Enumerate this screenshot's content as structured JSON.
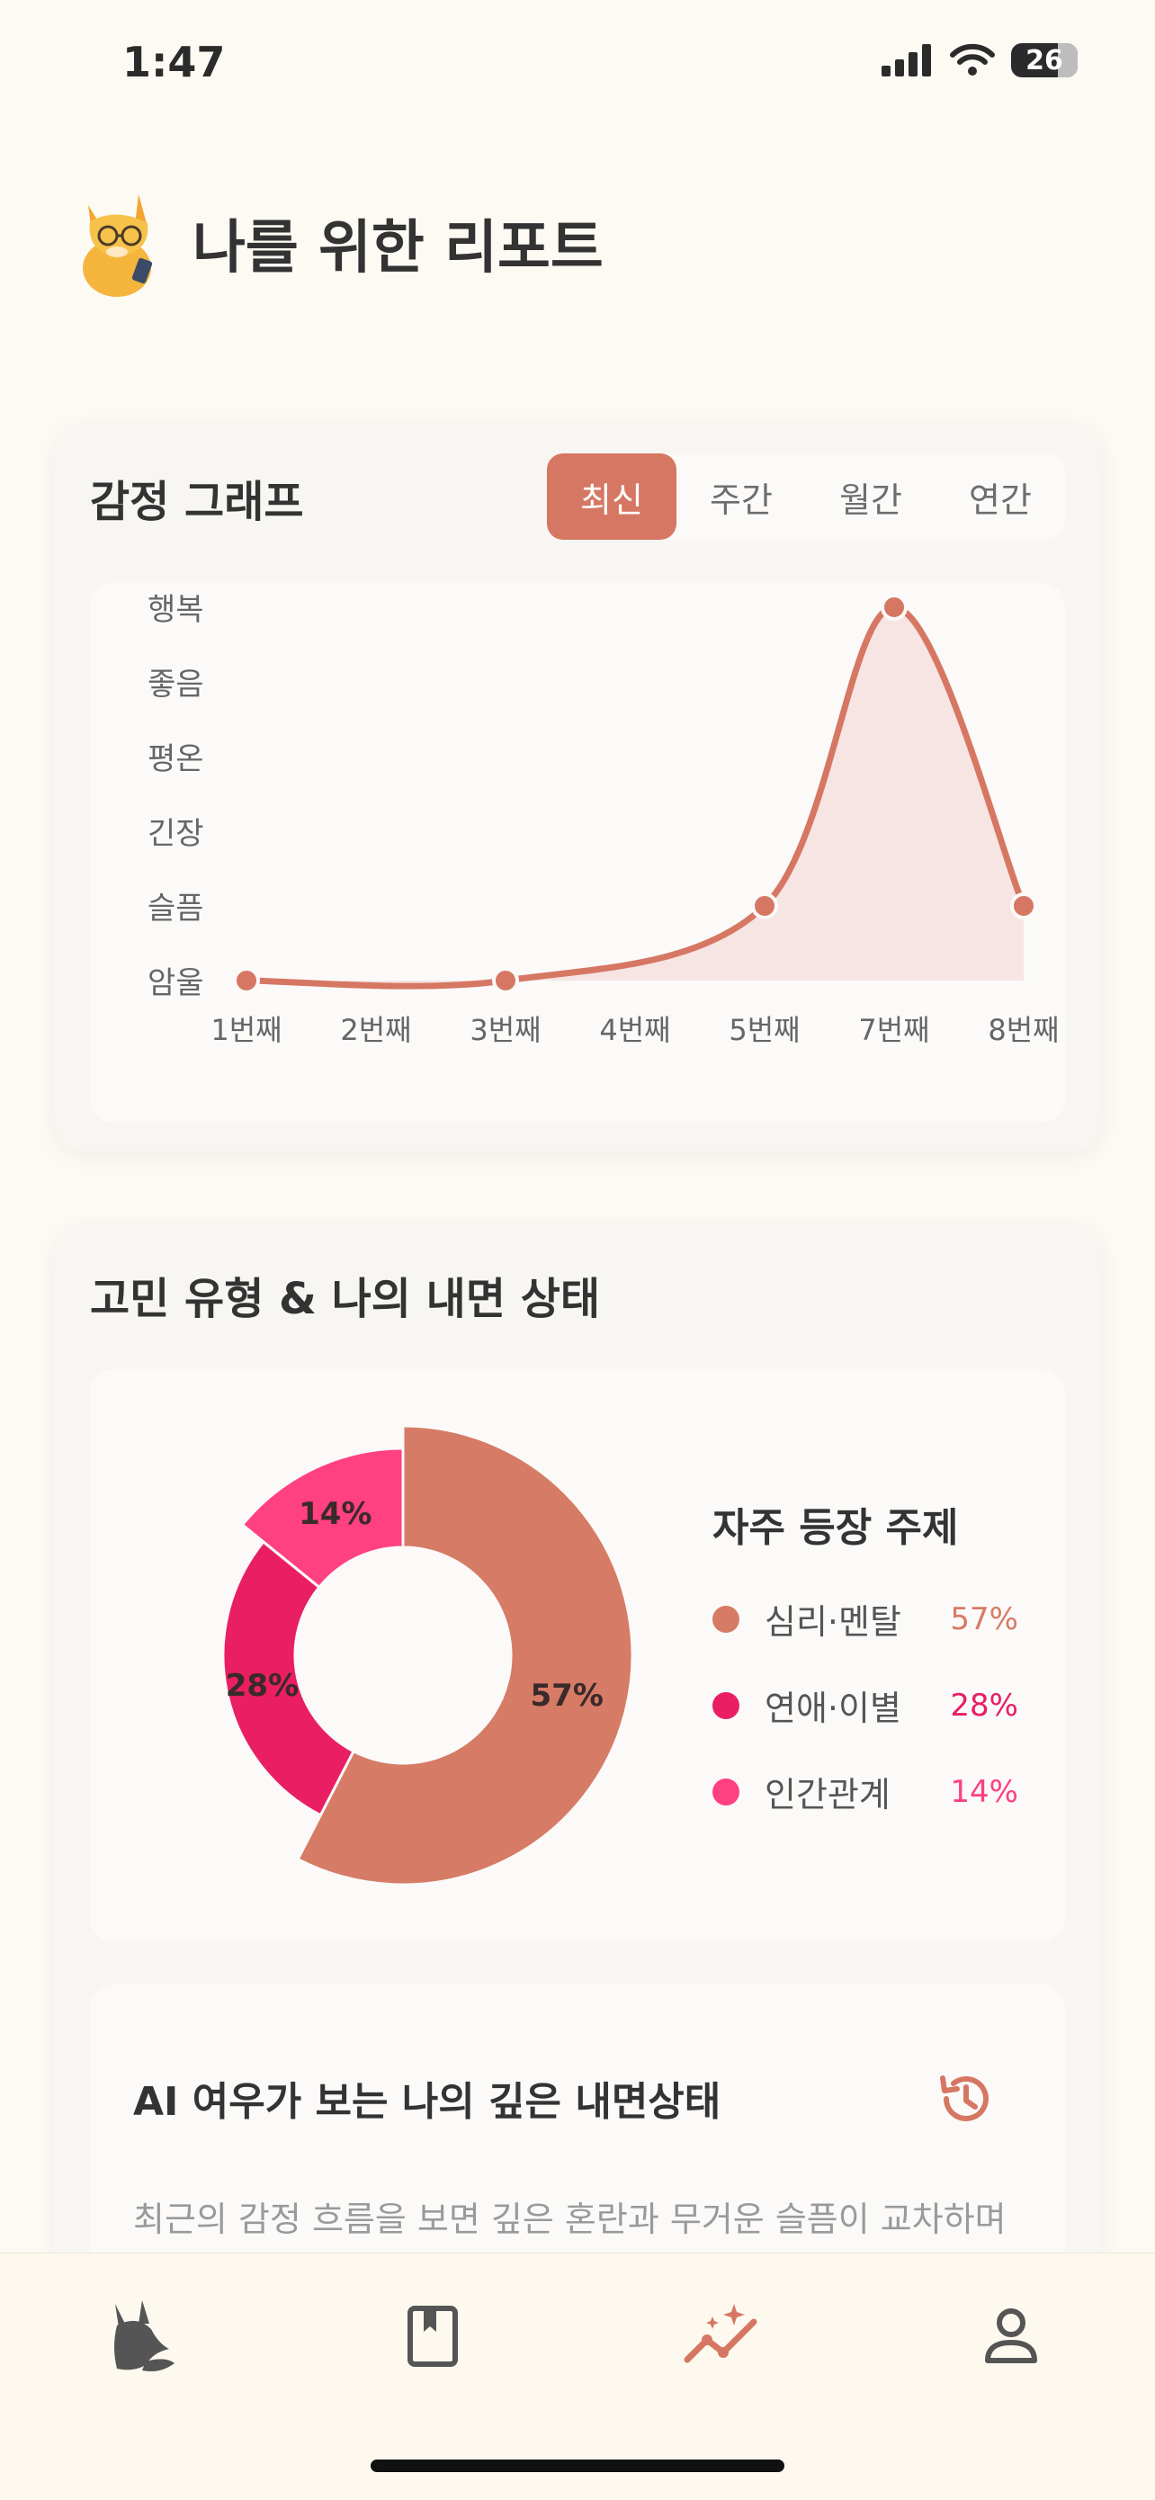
{
  "status_bar": {
    "time": "1:47",
    "battery": "26"
  },
  "header": {
    "title": "나를 위한 리포트",
    "mascot_icon": "fox-mascot-icon"
  },
  "emotion_graph": {
    "title": "감정 그래프",
    "tabs": [
      {
        "label": "최신",
        "active": true
      },
      {
        "label": "주간",
        "active": false
      },
      {
        "label": "월간",
        "active": false
      },
      {
        "label": "연간",
        "active": false
      }
    ]
  },
  "chart_data": [
    {
      "type": "line",
      "y_levels": [
        "암울",
        "슬픔",
        "긴장",
        "평온",
        "좋음",
        "행복"
      ],
      "categories": [
        "1번째",
        "2번째",
        "3번째",
        "4번째",
        "5번째",
        "7번째",
        "8번째"
      ],
      "points": [
        {
          "x": "1번째",
          "y": 0
        },
        {
          "x": "3번째",
          "y": 0
        },
        {
          "x": "5번째",
          "y": 1
        },
        {
          "x": "7번째",
          "y": 5
        },
        {
          "x": "8번째",
          "y": 1
        }
      ],
      "color": "#d67763",
      "fill": "#f6e5e3"
    },
    {
      "type": "pie",
      "slices": [
        {
          "label": "심리·멘탈",
          "value": 57,
          "display": "57%",
          "color": "#d67b66"
        },
        {
          "label": "연애·이별",
          "value": 28,
          "display": "28%",
          "color": "#e91e63"
        },
        {
          "label": "인간관계",
          "value": 14,
          "display": "14%",
          "color": "#ff4081"
        }
      ]
    }
  ],
  "concern_type": {
    "title": "고민 유형 & 나의 내면 상태",
    "legend_title": "자주 등장 주제"
  },
  "ai_insight": {
    "title": "AI 여우가 보는 나의 깊은 내면상태",
    "text": "최근의 감정 흐름을 보면 깊은 혼란과 무거운 슬픔이 교차하며"
  },
  "tab_bar": {
    "items": [
      {
        "icon": "fox-home-icon",
        "active": false
      },
      {
        "icon": "journal-book-icon",
        "active": false
      },
      {
        "icon": "report-chart-icon",
        "active": true
      },
      {
        "icon": "profile-icon",
        "active": false
      }
    ]
  }
}
